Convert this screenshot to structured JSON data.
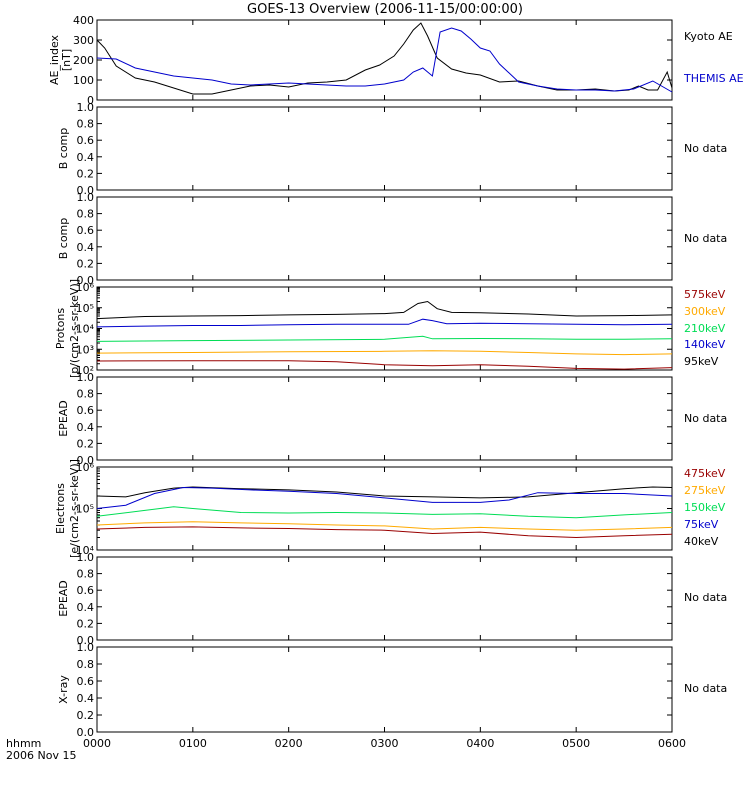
{
  "title": "GOES-13 Overview (2006-11-15/00:00:00)",
  "time_axis": {
    "label_line1": "hhmm",
    "label_line2": "2006 Nov 15",
    "ticks": [
      "0000",
      "0100",
      "0200",
      "0300",
      "0400",
      "0500",
      "0600"
    ]
  },
  "no_data_text": "No data",
  "chart_data": [
    {
      "type": "line",
      "ylabel": "AE_index [nT]",
      "ylim": [
        0,
        400
      ],
      "ytick_labels": [
        "0",
        "100",
        "200",
        "300",
        "400"
      ],
      "x_unit": "hours after 0000 UT",
      "series": [
        {
          "name": "Kyoto AE",
          "color": "#000000",
          "x": [
            0,
            0.08,
            0.2,
            0.4,
            0.6,
            0.8,
            1.0,
            1.2,
            1.4,
            1.6,
            1.8,
            2.0,
            2.2,
            2.4,
            2.6,
            2.8,
            2.95,
            3.1,
            3.2,
            3.3,
            3.38,
            3.45,
            3.55,
            3.7,
            3.85,
            4.0,
            4.2,
            4.4,
            4.6,
            4.8,
            5.0,
            5.2,
            5.4,
            5.55,
            5.65,
            5.75,
            5.85,
            5.95,
            6.0
          ],
          "y": [
            300,
            260,
            170,
            110,
            90,
            60,
            30,
            30,
            50,
            70,
            75,
            65,
            85,
            90,
            100,
            150,
            175,
            220,
            280,
            350,
            385,
            320,
            210,
            155,
            135,
            125,
            90,
            95,
            70,
            50,
            50,
            55,
            45,
            50,
            70,
            50,
            50,
            140,
            60
          ]
        },
        {
          "name": "THEMIS AE",
          "color": "#0000cc",
          "x": [
            0,
            0.2,
            0.4,
            0.6,
            0.8,
            1.0,
            1.2,
            1.4,
            1.6,
            1.8,
            2.0,
            2.2,
            2.4,
            2.6,
            2.8,
            3.0,
            3.2,
            3.3,
            3.4,
            3.5,
            3.58,
            3.7,
            3.8,
            3.9,
            4.0,
            4.1,
            4.2,
            4.4,
            4.6,
            4.8,
            5.0,
            5.2,
            5.4,
            5.6,
            5.8,
            6.0
          ],
          "y": [
            210,
            205,
            160,
            140,
            120,
            110,
            100,
            80,
            75,
            80,
            85,
            80,
            75,
            70,
            70,
            80,
            100,
            140,
            160,
            120,
            340,
            360,
            345,
            305,
            260,
            245,
            180,
            90,
            70,
            55,
            50,
            50,
            45,
            55,
            95,
            40
          ]
        }
      ]
    },
    {
      "type": "line",
      "ylabel": "B comp",
      "ylim": [
        0,
        1
      ],
      "ytick_labels": [
        "0.0",
        "0.2",
        "0.4",
        "0.6",
        "0.8",
        "1.0"
      ],
      "series": []
    },
    {
      "type": "line",
      "ylabel": "B comp",
      "ylim": [
        0,
        1
      ],
      "ytick_labels": [
        "0.0",
        "0.2",
        "0.4",
        "0.6",
        "0.8",
        "1.0"
      ],
      "series": []
    },
    {
      "type": "line",
      "scale": "log",
      "ylabel": "Protons [p/(cm2-s-sr-keV)]",
      "ylim": [
        100,
        1000000
      ],
      "ytick_labels": [
        "10²",
        "10³",
        "10⁴",
        "10⁵",
        "10⁶"
      ],
      "x_unit": "hours after 0000 UT",
      "series": [
        {
          "name": "95keV",
          "color": "#000000",
          "x": [
            0,
            0.5,
            1,
            1.5,
            2,
            2.5,
            3,
            3.2,
            3.35,
            3.45,
            3.55,
            3.7,
            4,
            4.5,
            5,
            5.5,
            6
          ],
          "y": [
            30000,
            38000,
            40000,
            42000,
            45000,
            48000,
            52000,
            60000,
            160000,
            200000,
            90000,
            60000,
            58000,
            50000,
            40000,
            42000,
            45000
          ]
        },
        {
          "name": "140keV",
          "color": "#0000cc",
          "x": [
            0,
            0.5,
            1,
            1.5,
            2,
            2.5,
            3,
            3.25,
            3.4,
            3.5,
            3.65,
            4,
            4.5,
            5,
            5.5,
            6
          ],
          "y": [
            12000,
            13000,
            14000,
            14000,
            15000,
            16000,
            16000,
            16000,
            28000,
            24000,
            17000,
            18000,
            17000,
            16000,
            15000,
            16000
          ]
        },
        {
          "name": "210keV",
          "color": "#00dd55",
          "x": [
            0,
            1,
            2,
            3,
            3.4,
            3.5,
            4,
            4.5,
            5,
            5.5,
            6
          ],
          "y": [
            2400,
            2600,
            2800,
            3000,
            4200,
            3200,
            3300,
            3200,
            3000,
            3000,
            3200
          ]
        },
        {
          "name": "300keV",
          "color": "#ffaa00",
          "x": [
            0,
            1,
            2,
            3,
            3.5,
            4,
            4.5,
            5,
            5.5,
            6
          ],
          "y": [
            650,
            700,
            750,
            800,
            850,
            800,
            700,
            600,
            550,
            600
          ]
        },
        {
          "name": "575keV",
          "color": "#990000",
          "x": [
            0,
            1,
            2,
            2.5,
            3,
            3.5,
            4,
            4.5,
            5,
            5.5,
            6
          ],
          "y": [
            270,
            280,
            280,
            250,
            180,
            160,
            180,
            150,
            120,
            110,
            130
          ]
        }
      ]
    },
    {
      "type": "line",
      "ylabel": "EPEAD",
      "ylim": [
        0,
        1
      ],
      "ytick_labels": [
        "0.0",
        "0.2",
        "0.4",
        "0.6",
        "0.8",
        "1.0"
      ],
      "series": []
    },
    {
      "type": "line",
      "scale": "log",
      "ylabel": "Electrons [e/(cm2-s-sr-keV)]",
      "ylim": [
        10000,
        1000000
      ],
      "ytick_labels": [
        "10⁴",
        "10⁵",
        "10⁶"
      ],
      "x_unit": "hours after 0000 UT",
      "series": [
        {
          "name": "40keV",
          "color": "#000000",
          "x": [
            0,
            0.3,
            0.5,
            0.8,
            1.0,
            1.5,
            2.0,
            2.5,
            3.0,
            3.5,
            4.0,
            4.5,
            5.0,
            5.5,
            5.8,
            6.0
          ],
          "y": [
            200000,
            190000,
            240000,
            310000,
            330000,
            300000,
            280000,
            250000,
            200000,
            190000,
            180000,
            190000,
            240000,
            300000,
            330000,
            320000
          ]
        },
        {
          "name": "75keV",
          "color": "#0000cc",
          "x": [
            0,
            0.3,
            0.6,
            0.9,
            1.2,
            1.6,
            2.0,
            2.5,
            3.0,
            3.5,
            4.0,
            4.3,
            4.6,
            5.0,
            5.5,
            6.0
          ],
          "y": [
            100000,
            120000,
            230000,
            320000,
            310000,
            280000,
            260000,
            230000,
            180000,
            140000,
            140000,
            160000,
            240000,
            230000,
            230000,
            200000
          ]
        },
        {
          "name": "150keV",
          "color": "#00dd55",
          "x": [
            0,
            0.5,
            0.8,
            1.0,
            1.5,
            2.0,
            2.5,
            3.0,
            3.5,
            4.0,
            4.5,
            5.0,
            5.5,
            6.0
          ],
          "y": [
            65000,
            90000,
            110000,
            100000,
            80000,
            78000,
            80000,
            78000,
            72000,
            75000,
            65000,
            60000,
            70000,
            80000
          ]
        },
        {
          "name": "275keV",
          "color": "#ffaa00",
          "x": [
            0,
            0.5,
            1.0,
            1.5,
            2.0,
            2.5,
            3.0,
            3.5,
            4.0,
            4.5,
            5.0,
            5.5,
            6.0
          ],
          "y": [
            40000,
            45000,
            48000,
            45000,
            43000,
            40000,
            38000,
            32000,
            35000,
            32000,
            30000,
            32000,
            35000
          ]
        },
        {
          "name": "475keV",
          "color": "#990000",
          "x": [
            0,
            0.5,
            1.0,
            1.5,
            2.0,
            2.5,
            3.0,
            3.5,
            4.0,
            4.5,
            5.0,
            5.5,
            6.0
          ],
          "y": [
            32000,
            35000,
            36000,
            34000,
            33000,
            31000,
            30000,
            25000,
            27000,
            22000,
            20000,
            22000,
            24000
          ]
        }
      ]
    },
    {
      "type": "line",
      "ylabel": "EPEAD",
      "ylim": [
        0,
        1
      ],
      "ytick_labels": [
        "0.0",
        "0.2",
        "0.4",
        "0.6",
        "0.8",
        "1.0"
      ],
      "series": []
    },
    {
      "type": "line",
      "ylabel": "X-ray",
      "ylim": [
        0,
        1
      ],
      "ytick_labels": [
        "0.0",
        "0.2",
        "0.4",
        "0.6",
        "0.8",
        "1.0"
      ],
      "series": []
    }
  ]
}
